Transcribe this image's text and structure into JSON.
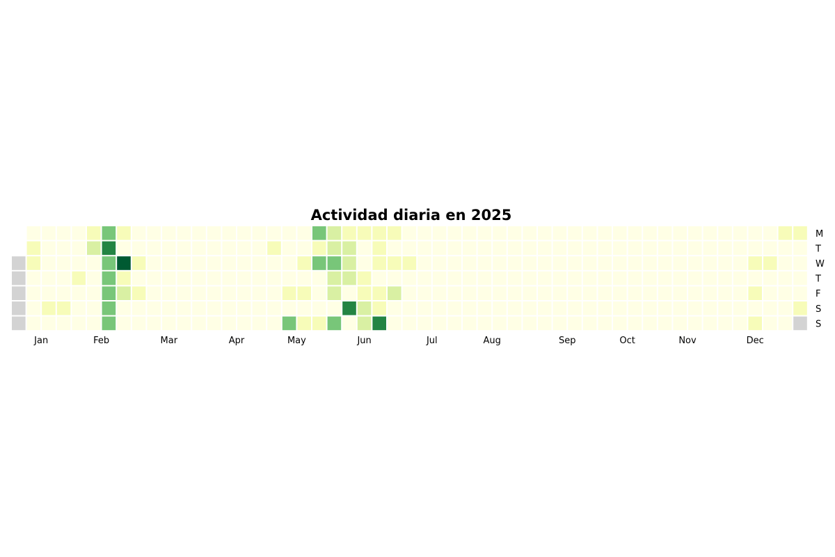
{
  "chart_data": {
    "type": "heatmap",
    "title": "Actividad diaria en 2025",
    "year": 2025,
    "day_labels": [
      "M",
      "T",
      "W",
      "T",
      "F",
      "S",
      "S"
    ],
    "month_labels": [
      {
        "label": "Jan",
        "week": 1.5
      },
      {
        "label": "Feb",
        "week": 5.5
      },
      {
        "label": "Mar",
        "week": 10
      },
      {
        "label": "Apr",
        "week": 14.5
      },
      {
        "label": "May",
        "week": 18.5
      },
      {
        "label": "Jun",
        "week": 23
      },
      {
        "label": "Jul",
        "week": 27.5
      },
      {
        "label": "Aug",
        "week": 31.5
      },
      {
        "label": "Sep",
        "week": 36.5
      },
      {
        "label": "Oct",
        "week": 40.5
      },
      {
        "label": "Nov",
        "week": 44.5
      },
      {
        "label": "Dec",
        "week": 49
      }
    ],
    "value_range": [
      0,
      10
    ],
    "colors": {
      "scale": [
        "#ffffe5",
        "#f7fcb9",
        "#d9f0a3",
        "#addd8e",
        "#78c679",
        "#41ab5d",
        "#238443",
        "#005a32"
      ],
      "out_of_year": "#d3d3d3",
      "gap": "#ffffff"
    },
    "weeks": 53,
    "values": [
      [
        null,
        0,
        0,
        0,
        0,
        2,
        5,
        2,
        0,
        0,
        0,
        0,
        0,
        0,
        0,
        0,
        0,
        0,
        0,
        0,
        5,
        3,
        2,
        2,
        2,
        2,
        0,
        0,
        0,
        0,
        0,
        0,
        0,
        0,
        0,
        0,
        0,
        0,
        0,
        0,
        0,
        0,
        0,
        0,
        0,
        0,
        0,
        0,
        0,
        0,
        0,
        2,
        2,
        null
      ],
      [
        null,
        2,
        0,
        0,
        0,
        3,
        8,
        0,
        0,
        0,
        0,
        0,
        0,
        0,
        0,
        0,
        0,
        2,
        0,
        0,
        1,
        3,
        3,
        0,
        2,
        0,
        0,
        0,
        0,
        0,
        0,
        0,
        0,
        0,
        0,
        0,
        0,
        0,
        0,
        0,
        0,
        0,
        0,
        0,
        0,
        0,
        0,
        0,
        0,
        0,
        0,
        0,
        0,
        null
      ],
      [
        null,
        1,
        0,
        0,
        0,
        0,
        5,
        10,
        2,
        0,
        0,
        0,
        0,
        0,
        0,
        0,
        0,
        0,
        0,
        2,
        5,
        6,
        3,
        0,
        1,
        2,
        2,
        0,
        0,
        0,
        0,
        0,
        0,
        0,
        0,
        0,
        0,
        0,
        0,
        0,
        0,
        0,
        0,
        0,
        0,
        0,
        0,
        0,
        0,
        2,
        2,
        0,
        0,
        null
      ],
      [
        null,
        0,
        0,
        0,
        1,
        0,
        5,
        2,
        0,
        0,
        0,
        0,
        0,
        0,
        0,
        0,
        0,
        0,
        0,
        0,
        0,
        3,
        3,
        1,
        0,
        0,
        0,
        0,
        0,
        0,
        0,
        0,
        0,
        0,
        0,
        0,
        0,
        0,
        0,
        0,
        0,
        0,
        0,
        0,
        0,
        0,
        0,
        0,
        0,
        0,
        0,
        0,
        0,
        null
      ],
      [
        null,
        0,
        0,
        0,
        0,
        0,
        6,
        3,
        2,
        0,
        0,
        0,
        0,
        0,
        0,
        0,
        0,
        0,
        1,
        1,
        0,
        3,
        0,
        1,
        2,
        3,
        0,
        0,
        0,
        0,
        0,
        0,
        0,
        0,
        0,
        0,
        0,
        0,
        0,
        0,
        0,
        0,
        0,
        0,
        0,
        0,
        0,
        0,
        0,
        1,
        0,
        0,
        0,
        null
      ],
      [
        null,
        0,
        1,
        1,
        0,
        0,
        6,
        0,
        0,
        0,
        0,
        0,
        0,
        0,
        0,
        0,
        0,
        0,
        0,
        0,
        0,
        0,
        8,
        3,
        1,
        0,
        0,
        0,
        0,
        0,
        0,
        0,
        0,
        0,
        0,
        0,
        0,
        0,
        0,
        0,
        0,
        0,
        0,
        0,
        0,
        0,
        0,
        0,
        0,
        0,
        0,
        0,
        1,
        null
      ],
      [
        null,
        0,
        0,
        0,
        0,
        0,
        5,
        0,
        0,
        0,
        0,
        0,
        0,
        0,
        0,
        0,
        0,
        0,
        5,
        1,
        1,
        5,
        0,
        3,
        8,
        0,
        0,
        0,
        0,
        0,
        0,
        0,
        0,
        0,
        0,
        0,
        0,
        0,
        0,
        0,
        0,
        0,
        0,
        0,
        0,
        0,
        0,
        0,
        0,
        2,
        0,
        0,
        null,
        null
      ]
    ]
  }
}
